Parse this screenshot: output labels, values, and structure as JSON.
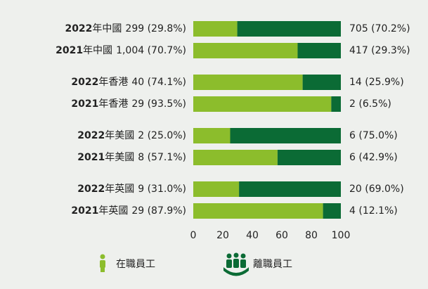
{
  "chart_data": {
    "type": "bar",
    "orientation": "horizontal",
    "stacked": true,
    "categories": [
      "2022年中國",
      "2021年中國",
      "2022年香港",
      "2021年香港",
      "2022年美國",
      "2021年美國",
      "2022年英國",
      "2021年英國"
    ],
    "series": [
      {
        "name": "在職員工",
        "color": "#8cbd2c",
        "values": [
          29.8,
          70.7,
          74.1,
          93.5,
          25.0,
          57.1,
          31.0,
          87.9
        ],
        "value_labels": [
          "299 (29.8%)",
          "1,004 (70.7%)",
          "40 (74.1%)",
          "29 (93.5%)",
          "2 (25.0%)",
          "8 (57.1%)",
          "9 (31.0%)",
          "29 (87.9%)"
        ]
      },
      {
        "name": "離職員工",
        "color": "#0b6b35",
        "values": [
          70.2,
          29.3,
          25.9,
          6.5,
          75.0,
          42.9,
          69.0,
          12.1
        ],
        "value_labels": [
          "705 (70.2%)",
          "417 (29.3%)",
          "14 (25.9%)",
          "2 (6.5%)",
          "6 (75.0%)",
          "6 (42.9%)",
          "20 (69.0%)",
          "4 (12.1%)"
        ]
      }
    ],
    "xlim": [
      0,
      100
    ],
    "xticks": [
      0,
      20,
      40,
      60,
      80,
      100
    ]
  }
}
